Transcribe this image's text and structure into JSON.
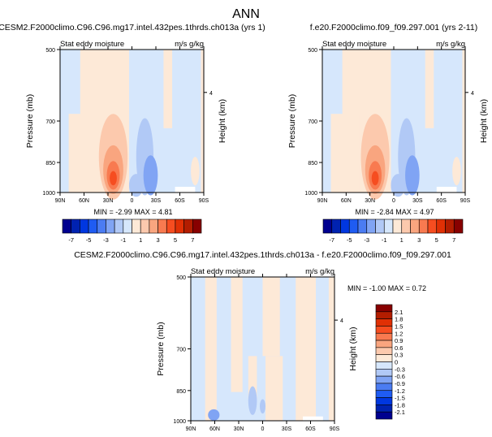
{
  "title": "ANN",
  "palette": [
    "#00008f",
    "#0022b0",
    "#0037e0",
    "#1f5cf2",
    "#4b7cf2",
    "#80a4f4",
    "#b1c9f6",
    "#d6e7fc",
    "#fde9d7",
    "#fcc9ad",
    "#f9a57f",
    "#f87a50",
    "#f64d20",
    "#e03005",
    "#b31d00",
    "#880000"
  ],
  "chart_data": [
    {
      "type": "heatmap",
      "title": "CESM2.F2000climo.C96.C96.mg17.intel.432pes.1thrds.ch013a (yrs 1)",
      "left_label": "Stat eddy moisture",
      "right_label": "m/s g/kg",
      "ylabel": "Pressure (mb)",
      "y2label": "Height (km)",
      "yticks": [
        "500",
        "700",
        "850",
        "1000"
      ],
      "y2ticks": [
        "4"
      ],
      "xticks": [
        "90N",
        "60N",
        "30N",
        "0",
        "30S",
        "60S",
        "90S"
      ],
      "stats": "MIN =  -2.99  MAX =   4.81",
      "colorbar_labels": [
        "-7",
        "-5",
        "-3",
        "-1",
        "1",
        "3",
        "5",
        "7"
      ],
      "colorbar_levels": [
        -7,
        -6,
        -5,
        -4,
        -3,
        -2,
        -1,
        0,
        1,
        2,
        3,
        4,
        5,
        6,
        7
      ]
    },
    {
      "type": "heatmap",
      "title": "f.e20.F2000climo.f09_f09.297.001 (yrs 2-11)",
      "left_label": "Stat eddy moisture",
      "right_label": "m/s g/kg",
      "ylabel": "Pressure (mb)",
      "y2label": "Height (km)",
      "yticks": [
        "500",
        "700",
        "850",
        "1000"
      ],
      "y2ticks": [
        "4"
      ],
      "xticks": [
        "90N",
        "60N",
        "30N",
        "0",
        "30S",
        "60S",
        "90S"
      ],
      "stats": "MIN =  -2.84  MAX =   4.97",
      "colorbar_labels": [
        "-7",
        "-5",
        "-3",
        "-1",
        "1",
        "3",
        "5",
        "7"
      ],
      "colorbar_levels": [
        -7,
        -6,
        -5,
        -4,
        -3,
        -2,
        -1,
        0,
        1,
        2,
        3,
        4,
        5,
        6,
        7
      ]
    },
    {
      "type": "heatmap",
      "title": "CESM2.F2000climo.C96.C96.mg17.intel.432pes.1thrds.ch013a - f.e20.F2000climo.f09_f09.297.001",
      "left_label": "Stat eddy moisture",
      "right_label": "m/s g/kg",
      "ylabel": "Pressure (mb)",
      "y2label": "Height (km)",
      "yticks": [
        "500",
        "700",
        "850",
        "1000"
      ],
      "y2ticks": [
        "4"
      ],
      "xticks": [
        "90N",
        "60N",
        "30N",
        "0",
        "30S",
        "60S",
        "90S"
      ],
      "stats": "MIN =  -1.00  MAX =   0.72",
      "colorbar_labels": [
        "2.1",
        "1.8",
        "1.5",
        "1.2",
        "0.9",
        "0.6",
        "0.3",
        "0",
        "-0.3",
        "-0.6",
        "-0.9",
        "-1.2",
        "-1.5",
        "-1.8",
        "-2.1"
      ]
    }
  ]
}
